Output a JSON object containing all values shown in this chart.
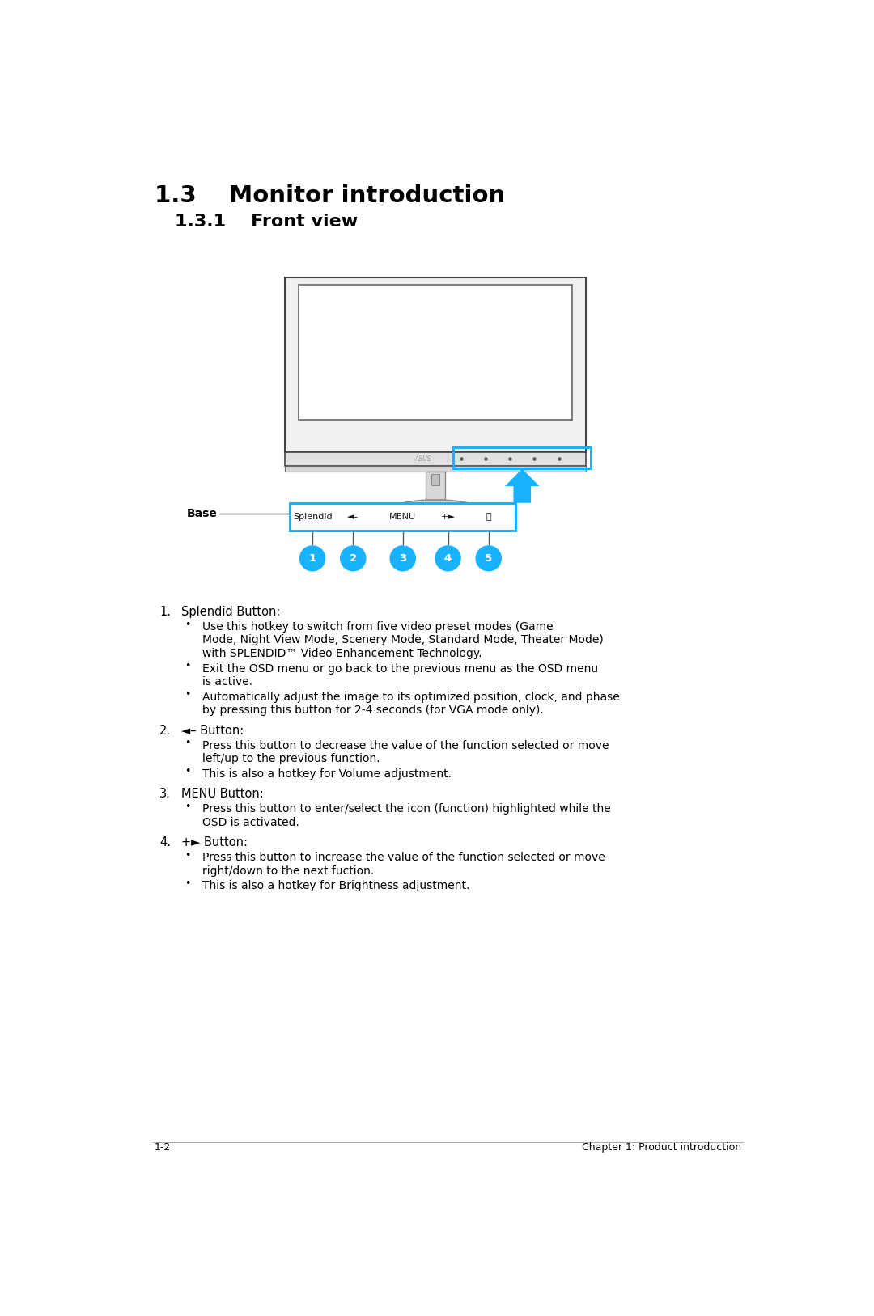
{
  "title": "1.3    Monitor introduction",
  "subtitle": "1.3.1    Front view",
  "bg_color": "#ffffff",
  "title_fontsize": 21,
  "subtitle_fontsize": 16,
  "body_fontsize": 10.5,
  "footer_left": "1-2",
  "footer_right": "Chapter 1: Product introduction",
  "blue_color": "#1ab2ff",
  "button_labels": [
    "Splendid",
    "◄–",
    "MENU",
    "+►",
    "⏻"
  ],
  "numbered_labels": [
    "1",
    "2",
    "3",
    "4",
    "5"
  ],
  "items": [
    {
      "num": "1.",
      "title": "Splendid Button:",
      "bullets": [
        "Use this hotkey to switch from five video preset modes (Game\nMode, Night View Mode, Scenery Mode, Standard Mode, Theater Mode)\nwith SPLENDID™ Video Enhancement Technology.",
        "Exit the OSD menu or go back to the previous menu as the OSD menu\nis active.",
        "Automatically adjust the image to its optimized position, clock, and phase\nby pressing this button for 2-4 seconds (for VGA mode only)."
      ]
    },
    {
      "num": "2.",
      "title": "◄– Button:",
      "bullets": [
        "Press this button to decrease the value of the function selected or move\nleft/up to the previous function.",
        "This is also a hotkey for Volume adjustment."
      ]
    },
    {
      "num": "3.",
      "title": "MENU Button:",
      "bullets": [
        "Press this button to enter/select the icon (function) highlighted while the\nOSD is activated."
      ]
    },
    {
      "num": "4.",
      "title": "+► Button:",
      "bullets": [
        "Press this button to increase the value of the function selected or move\nright/down to the next fuction.",
        "This is also a hotkey for Brightness adjustment."
      ]
    }
  ]
}
